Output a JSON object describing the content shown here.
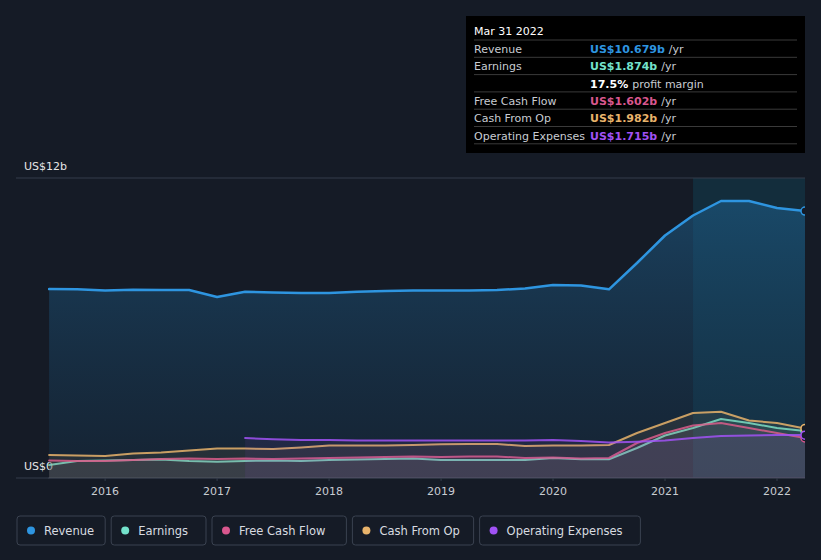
{
  "chart_data": {
    "type": "line",
    "x": [
      2015.5,
      2015.75,
      2016,
      2016.25,
      2016.5,
      2016.75,
      2017,
      2017.25,
      2017.5,
      2017.75,
      2018,
      2018.25,
      2018.5,
      2018.75,
      2019,
      2019.25,
      2019.5,
      2019.75,
      2020,
      2020.25,
      2020.5,
      2020.75,
      2021,
      2021.25,
      2021.5,
      2021.75,
      2022,
      2022.25
    ],
    "xlim": [
      2015.49,
      2022.25
    ],
    "xticks": [
      2016,
      2017,
      2018,
      2019,
      2020,
      2021,
      2022
    ],
    "ylim": [
      0,
      12
    ],
    "yticks": [
      {
        "value": 0,
        "label": "US$0"
      },
      {
        "value": 12,
        "label": "US$12b"
      }
    ],
    "grid": true,
    "legend": "bottom",
    "series": [
      {
        "name": "Revenue",
        "color": "#2e95e0",
        "values": [
          7.56,
          7.55,
          7.5,
          7.53,
          7.52,
          7.52,
          7.24,
          7.45,
          7.42,
          7.4,
          7.4,
          7.45,
          7.48,
          7.5,
          7.5,
          7.5,
          7.52,
          7.58,
          7.72,
          7.7,
          7.55,
          8.6,
          9.7,
          10.5,
          11.08,
          11.08,
          10.8,
          10.679
        ]
      },
      {
        "name": "Earnings",
        "color": "#74e2cc",
        "values": [
          0.52,
          0.68,
          0.7,
          0.72,
          0.74,
          0.68,
          0.65,
          0.68,
          0.7,
          0.68,
          0.72,
          0.74,
          0.76,
          0.78,
          0.72,
          0.72,
          0.72,
          0.72,
          0.8,
          0.75,
          0.75,
          1.2,
          1.7,
          2.0,
          2.36,
          2.2,
          2.0,
          1.874
        ]
      },
      {
        "name": "Free Cash Flow",
        "color": "#d9578e",
        "values": [
          0.7,
          0.68,
          0.68,
          0.72,
          0.76,
          0.78,
          0.76,
          0.78,
          0.76,
          0.78,
          0.8,
          0.82,
          0.84,
          0.86,
          0.84,
          0.86,
          0.86,
          0.8,
          0.82,
          0.78,
          0.8,
          1.4,
          1.8,
          2.1,
          2.2,
          2.0,
          1.8,
          1.602
        ]
      },
      {
        "name": "Cash From Op",
        "color": "#e8b36b",
        "values": [
          0.92,
          0.9,
          0.88,
          0.98,
          1.02,
          1.1,
          1.18,
          1.18,
          1.16,
          1.22,
          1.3,
          1.3,
          1.3,
          1.32,
          1.35,
          1.36,
          1.36,
          1.28,
          1.3,
          1.3,
          1.32,
          1.8,
          2.2,
          2.6,
          2.65,
          2.3,
          2.2,
          1.982
        ]
      },
      {
        "name": "Operating Expenses",
        "color": "#a152f5",
        "values": [
          null,
          null,
          null,
          null,
          null,
          null,
          null,
          1.6,
          1.55,
          1.52,
          1.52,
          1.5,
          1.5,
          1.5,
          1.5,
          1.5,
          1.5,
          1.5,
          1.52,
          1.48,
          1.42,
          1.45,
          1.5,
          1.6,
          1.68,
          1.7,
          1.72,
          1.715
        ]
      }
    ],
    "tooltip": {
      "title": "Mar 31 2022",
      "rows": [
        {
          "label": "Revenue",
          "value": "US$10.679b",
          "unit": "/yr"
        },
        {
          "label": "Earnings",
          "value": "US$1.874b",
          "unit": "/yr"
        },
        {
          "value": "17.5%",
          "unit": "profit margin"
        },
        {
          "label": "Free Cash Flow",
          "value": "US$1.602b",
          "unit": "/yr"
        },
        {
          "label": "Cash From Op",
          "value": "US$1.982b",
          "unit": "/yr"
        },
        {
          "label": "Operating Expenses",
          "value": "US$1.715b",
          "unit": "/yr"
        }
      ]
    }
  }
}
